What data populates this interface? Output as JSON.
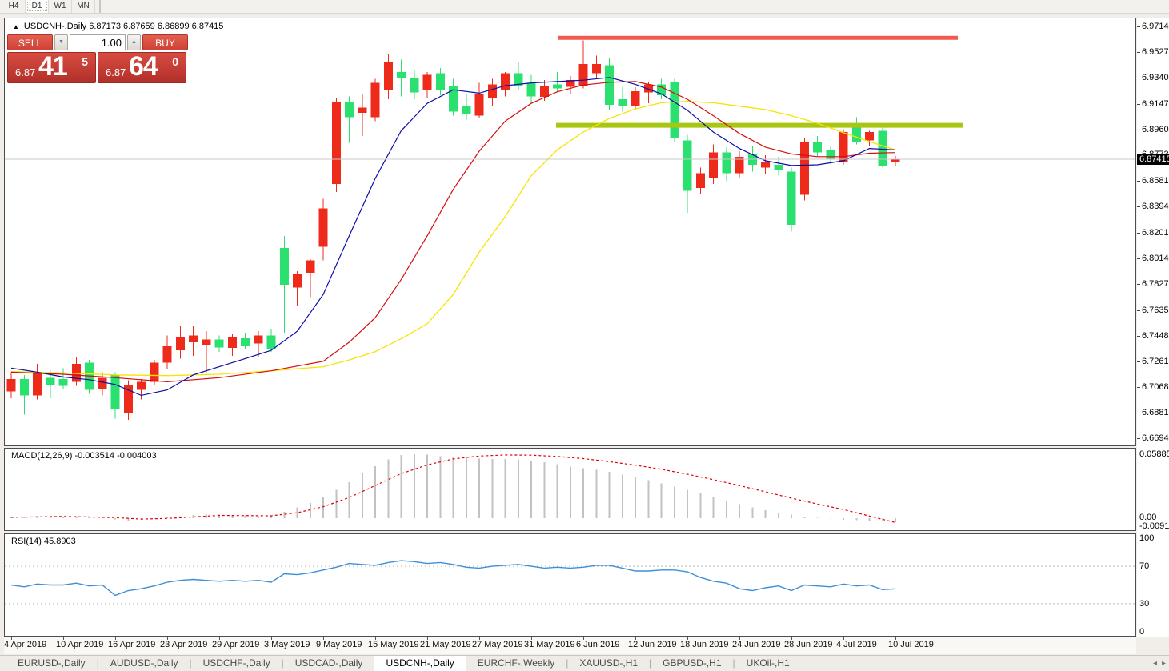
{
  "toolbar": {
    "timeframes": [
      "H4",
      "D1",
      "W1",
      "MN"
    ],
    "active": "D1"
  },
  "chart": {
    "header_text": "USDCNH-,Daily  6.87173 6.87659 6.86899 6.87415",
    "trade_panel": {
      "sell_label": "SELL",
      "buy_label": "BUY",
      "volume": "1.00",
      "sell_price_small": "6.87",
      "sell_price_big": "41",
      "sell_price_sup": "5",
      "buy_price_small": "6.87",
      "buy_price_big": "64",
      "buy_price_sup": "0"
    },
    "current_price_tag": "6.87415"
  },
  "icons": {
    "collapse": "▲",
    "spinner_down": "▼",
    "spinner_up": "▲",
    "tab_scroll_left": "◂",
    "tab_scroll_right": "▸"
  },
  "colors": {
    "candle_up": "#ee2a1b",
    "candle_down": "#2ae06e",
    "ma_fast_blue": "#0d0da8",
    "ma_mid_red": "#d40f0f",
    "ma_slow_yellow": "#f7e400",
    "resistance_red": "#f25a4d",
    "support_green": "#a9c613",
    "current_line_gray": "#c8c8c8",
    "macd_hist": "#c2c2c2",
    "macd_signal": "#e00000",
    "rsi_line": "#3d8fd9",
    "level_dotted": "#b8b8b8"
  },
  "chart_data": {
    "type": "candlestick",
    "symbol": "USDCNH",
    "timeframe": "Daily",
    "ohlc_current": {
      "open": 6.87173,
      "high": 6.87659,
      "low": 6.86899,
      "close": 6.87415
    },
    "price_axis": {
      "max": 6.9714,
      "min": 6.66945,
      "ticks": [
        "6.97140",
        "6.95270",
        "6.93400",
        "6.91475",
        "6.89605",
        "6.87735",
        "6.85810",
        "6.83940",
        "6.82015",
        "6.80145",
        "6.78275",
        "6.76350",
        "6.74480",
        "6.72610",
        "6.70685",
        "6.68815",
        "6.66945"
      ]
    },
    "levels": {
      "resistance": 6.963,
      "support": 6.899,
      "current_bid": 6.87415
    },
    "date_ticks": [
      [
        0,
        "4 Apr 2019"
      ],
      [
        4,
        "10 Apr 2019"
      ],
      [
        8,
        "16 Apr 2019"
      ],
      [
        12,
        "23 Apr 2019"
      ],
      [
        16,
        "29 Apr 2019"
      ],
      [
        20,
        "3 May 2019"
      ],
      [
        24,
        "9 May 2019"
      ],
      [
        28,
        "15 May 2019"
      ],
      [
        32,
        "21 May 2019"
      ],
      [
        36,
        "27 May 2019"
      ],
      [
        40,
        "31 May 2019"
      ],
      [
        44,
        "6 Jun 2019"
      ],
      [
        48,
        "12 Jun 2019"
      ],
      [
        52,
        "18 Jun 2019"
      ],
      [
        56,
        "24 Jun 2019"
      ],
      [
        60,
        "28 Jun 2019"
      ],
      [
        64,
        "4 Jul 2019"
      ],
      [
        68,
        "10 Jul 2019"
      ]
    ],
    "candles": [
      [
        6.704,
        6.718,
        6.699,
        6.713
      ],
      [
        6.713,
        6.716,
        6.687,
        6.701
      ],
      [
        6.701,
        6.724,
        6.698,
        6.718
      ],
      [
        6.714,
        6.719,
        6.699,
        6.709
      ],
      [
        6.713,
        6.721,
        6.706,
        6.708
      ],
      [
        6.711,
        6.729,
        6.708,
        6.724
      ],
      [
        6.725,
        6.727,
        6.702,
        6.705
      ],
      [
        6.706,
        6.718,
        6.701,
        6.714
      ],
      [
        6.716,
        6.718,
        6.684,
        6.691
      ],
      [
        6.688,
        6.712,
        6.683,
        6.709
      ],
      [
        6.705,
        6.713,
        6.698,
        6.711
      ],
      [
        6.711,
        6.727,
        6.709,
        6.725
      ],
      [
        6.725,
        6.745,
        6.72,
        6.737
      ],
      [
        6.734,
        6.752,
        6.728,
        6.744
      ],
      [
        6.74,
        6.752,
        6.73,
        6.745
      ],
      [
        6.738,
        6.748,
        6.718,
        6.742
      ],
      [
        6.742,
        6.745,
        6.733,
        6.736
      ],
      [
        6.736,
        6.746,
        6.73,
        6.744
      ],
      [
        6.743,
        6.747,
        6.735,
        6.737
      ],
      [
        6.739,
        6.748,
        6.729,
        6.745
      ],
      [
        6.745,
        6.75,
        6.733,
        6.735
      ],
      [
        6.809,
        6.818,
        6.747,
        6.782
      ],
      [
        6.78,
        6.792,
        6.767,
        6.79
      ],
      [
        6.791,
        6.801,
        6.773,
        6.8
      ],
      [
        6.81,
        6.845,
        6.8,
        6.838
      ],
      [
        6.856,
        6.919,
        6.85,
        6.916
      ],
      [
        6.916,
        6.92,
        6.886,
        6.905
      ],
      [
        6.908,
        6.922,
        6.891,
        6.912
      ],
      [
        6.905,
        6.933,
        6.902,
        6.93
      ],
      [
        6.925,
        6.951,
        6.918,
        6.945
      ],
      [
        6.938,
        6.947,
        6.92,
        6.934
      ],
      [
        6.934,
        6.939,
        6.918,
        6.923
      ],
      [
        6.925,
        6.938,
        6.919,
        6.936
      ],
      [
        6.937,
        6.941,
        6.921,
        6.925
      ],
      [
        6.928,
        6.933,
        6.906,
        6.909
      ],
      [
        6.913,
        6.922,
        6.903,
        6.907
      ],
      [
        6.906,
        6.93,
        6.904,
        6.922
      ],
      [
        6.919,
        6.933,
        6.913,
        6.929
      ],
      [
        6.925,
        6.938,
        6.92,
        6.937
      ],
      [
        6.937,
        6.945,
        6.925,
        6.928
      ],
      [
        6.93,
        6.936,
        6.915,
        6.92
      ],
      [
        6.92,
        6.932,
        6.917,
        6.928
      ],
      [
        6.929,
        6.938,
        6.923,
        6.926
      ],
      [
        6.927,
        6.935,
        6.922,
        6.932
      ],
      [
        6.928,
        6.961,
        6.926,
        6.944
      ],
      [
        6.937,
        6.95,
        6.933,
        6.944
      ],
      [
        6.943,
        6.948,
        6.91,
        6.914
      ],
      [
        6.918,
        6.927,
        6.909,
        6.913
      ],
      [
        6.913,
        6.927,
        6.91,
        6.924
      ],
      [
        6.923,
        6.931,
        6.915,
        6.929
      ],
      [
        6.929,
        6.933,
        6.918,
        6.921
      ],
      [
        6.931,
        6.933,
        6.887,
        6.89
      ],
      [
        6.888,
        6.892,
        6.835,
        6.851
      ],
      [
        6.853,
        6.868,
        6.849,
        6.864
      ],
      [
        6.86,
        6.885,
        6.856,
        6.879
      ],
      [
        6.879,
        6.883,
        6.858,
        6.864
      ],
      [
        6.864,
        6.88,
        6.86,
        6.876
      ],
      [
        6.878,
        6.884,
        6.865,
        6.87
      ],
      [
        6.868,
        6.877,
        6.863,
        6.872
      ],
      [
        6.87,
        6.876,
        6.862,
        6.866
      ],
      [
        6.865,
        6.868,
        6.821,
        6.826
      ],
      [
        6.848,
        6.89,
        6.844,
        6.887
      ],
      [
        6.887,
        6.891,
        6.876,
        6.879
      ],
      [
        6.881,
        6.884,
        6.871,
        6.874
      ],
      [
        6.872,
        6.896,
        6.87,
        6.894
      ],
      [
        6.898,
        6.905,
        6.885,
        6.887
      ],
      [
        6.888,
        6.895,
        6.884,
        6.894
      ],
      [
        6.895,
        6.899,
        6.868,
        6.869
      ],
      [
        6.87173,
        6.87659,
        6.86899,
        6.87415
      ]
    ],
    "overlays": {
      "ma_fast_blue": [
        [
          0,
          6.721
        ],
        [
          2,
          6.718
        ],
        [
          4,
          6.7145
        ],
        [
          6,
          6.7125
        ],
        [
          8,
          6.709
        ],
        [
          10,
          6.701
        ],
        [
          12,
          6.705
        ],
        [
          14,
          6.716
        ],
        [
          16,
          6.722
        ],
        [
          18,
          6.728
        ],
        [
          20,
          6.734
        ],
        [
          22,
          6.748
        ],
        [
          24,
          6.775
        ],
        [
          26,
          6.818
        ],
        [
          28,
          6.86
        ],
        [
          30,
          6.895
        ],
        [
          32,
          6.915
        ],
        [
          34,
          6.925
        ],
        [
          36,
          6.9225
        ],
        [
          38,
          6.928
        ],
        [
          40,
          6.93
        ],
        [
          42,
          6.931
        ],
        [
          44,
          6.932
        ],
        [
          46,
          6.934
        ],
        [
          48,
          6.929
        ],
        [
          50,
          6.922
        ],
        [
          52,
          6.91
        ],
        [
          54,
          6.894
        ],
        [
          56,
          6.882
        ],
        [
          58,
          6.873
        ],
        [
          60,
          6.8695
        ],
        [
          62,
          6.87
        ],
        [
          64,
          6.873
        ],
        [
          66,
          6.882
        ],
        [
          68,
          6.881
        ]
      ],
      "ma_mid_red": [
        [
          0,
          6.718
        ],
        [
          4,
          6.7165
        ],
        [
          8,
          6.714
        ],
        [
          12,
          6.711
        ],
        [
          16,
          6.714
        ],
        [
          20,
          6.719
        ],
        [
          24,
          6.726
        ],
        [
          26,
          6.74
        ],
        [
          28,
          6.758
        ],
        [
          30,
          6.786
        ],
        [
          32,
          6.818
        ],
        [
          34,
          6.852
        ],
        [
          36,
          6.88
        ],
        [
          38,
          6.902
        ],
        [
          40,
          6.915
        ],
        [
          42,
          6.9235
        ],
        [
          44,
          6.9285
        ],
        [
          46,
          6.9305
        ],
        [
          48,
          6.931
        ],
        [
          50,
          6.927
        ],
        [
          52,
          6.918
        ],
        [
          54,
          6.906
        ],
        [
          56,
          6.893
        ],
        [
          58,
          6.883
        ],
        [
          60,
          6.878
        ],
        [
          62,
          6.876
        ],
        [
          64,
          6.876
        ],
        [
          66,
          6.8785
        ],
        [
          68,
          6.879
        ]
      ],
      "ma_slow_yellow": [
        [
          0,
          6.7185
        ],
        [
          4,
          6.7175
        ],
        [
          8,
          6.716
        ],
        [
          12,
          6.7155
        ],
        [
          16,
          6.7165
        ],
        [
          20,
          6.719
        ],
        [
          24,
          6.722
        ],
        [
          26,
          6.727
        ],
        [
          28,
          6.733
        ],
        [
          30,
          6.7425
        ],
        [
          32,
          6.7535
        ],
        [
          34,
          6.775
        ],
        [
          36,
          6.806
        ],
        [
          38,
          6.832
        ],
        [
          40,
          6.862
        ],
        [
          42,
          6.881
        ],
        [
          44,
          6.894
        ],
        [
          46,
          6.904
        ],
        [
          48,
          6.911
        ],
        [
          50,
          6.9155
        ],
        [
          52,
          6.9165
        ],
        [
          54,
          6.9155
        ],
        [
          56,
          6.913
        ],
        [
          58,
          6.9105
        ],
        [
          60,
          6.906
        ],
        [
          62,
          6.9005
        ],
        [
          64,
          6.8935
        ],
        [
          66,
          6.887
        ],
        [
          68,
          6.881
        ]
      ]
    },
    "macd": {
      "label": "MACD(12,26,9) -0.003514 -0.004003",
      "value": -0.003514,
      "signal_value": -0.004003,
      "scale_max": "0.058851",
      "scale_zero": "0.00",
      "scale_min": "-0.0091160",
      "hist": [
        0.001,
        0.0014,
        0.0018,
        0.0018,
        0.0016,
        0.0018,
        0.0012,
        0.0008,
        -0.0012,
        -0.0022,
        -0.0016,
        -0.0006,
        0.0008,
        0.0018,
        0.0028,
        0.0034,
        0.0032,
        0.003,
        0.0026,
        0.0022,
        0.0018,
        0.006,
        0.01,
        0.014,
        0.019,
        0.026,
        0.033,
        0.042,
        0.048,
        0.054,
        0.058,
        0.0589,
        0.0585,
        0.057,
        0.056,
        0.0555,
        0.055,
        0.0545,
        0.0545,
        0.054,
        0.053,
        0.0515,
        0.0495,
        0.0475,
        0.046,
        0.0445,
        0.0425,
        0.04,
        0.0375,
        0.035,
        0.032,
        0.029,
        0.026,
        0.023,
        0.0195,
        0.016,
        0.0128,
        0.01,
        0.0075,
        0.0052,
        0.0032,
        0.0016,
        0.0005,
        -0.0005,
        -0.0013,
        -0.0019,
        -0.0025,
        -0.0031,
        -0.0035
      ],
      "signal_points": [
        [
          0,
          0.0008
        ],
        [
          4,
          0.0016
        ],
        [
          8,
          0.0006
        ],
        [
          10,
          -0.0008
        ],
        [
          12,
          -0.0002
        ],
        [
          16,
          0.0026
        ],
        [
          20,
          0.0022
        ],
        [
          22,
          0.005
        ],
        [
          24,
          0.0105
        ],
        [
          26,
          0.019
        ],
        [
          28,
          0.03
        ],
        [
          30,
          0.041
        ],
        [
          32,
          0.049
        ],
        [
          34,
          0.0545
        ],
        [
          36,
          0.0572
        ],
        [
          38,
          0.0582
        ],
        [
          40,
          0.058
        ],
        [
          42,
          0.0568
        ],
        [
          44,
          0.0548
        ],
        [
          46,
          0.052
        ],
        [
          48,
          0.0488
        ],
        [
          50,
          0.045
        ],
        [
          52,
          0.0405
        ],
        [
          54,
          0.0355
        ],
        [
          56,
          0.03
        ],
        [
          58,
          0.0243
        ],
        [
          60,
          0.0185
        ],
        [
          62,
          0.013
        ],
        [
          64,
          0.008
        ],
        [
          66,
          0.002
        ],
        [
          68,
          -0.004
        ]
      ]
    },
    "rsi": {
      "label": "RSI(14) 45.8903",
      "value": 45.8903,
      "scale": [
        "100",
        "70",
        "30",
        "0"
      ],
      "overbought": 70,
      "oversold": 30,
      "values": [
        50,
        48,
        51,
        50,
        50,
        52,
        49,
        50,
        39,
        44,
        46,
        49,
        53,
        55,
        56,
        55,
        54,
        55,
        54,
        55,
        53,
        62,
        61,
        63,
        66,
        69,
        73,
        72,
        71,
        74,
        76,
        75,
        73,
        74,
        72,
        69,
        68,
        70,
        71,
        72,
        70,
        68,
        69,
        68,
        69,
        71,
        71,
        68,
        65,
        65,
        66,
        66,
        64,
        58,
        54,
        52,
        46,
        44,
        47,
        49,
        44,
        50,
        49,
        48,
        51,
        49,
        50,
        45,
        45.89
      ]
    }
  },
  "tabs": {
    "items": [
      "EURUSD-,Daily",
      "AUDUSD-,Daily",
      "USDCHF-,Daily",
      "USDCAD-,Daily",
      "USDCNH-,Daily",
      "EURCHF-,Weekly",
      "XAUUSD-,H1",
      "GBPUSD-,H1",
      "UKOil-,H1"
    ],
    "active_index": 4
  }
}
